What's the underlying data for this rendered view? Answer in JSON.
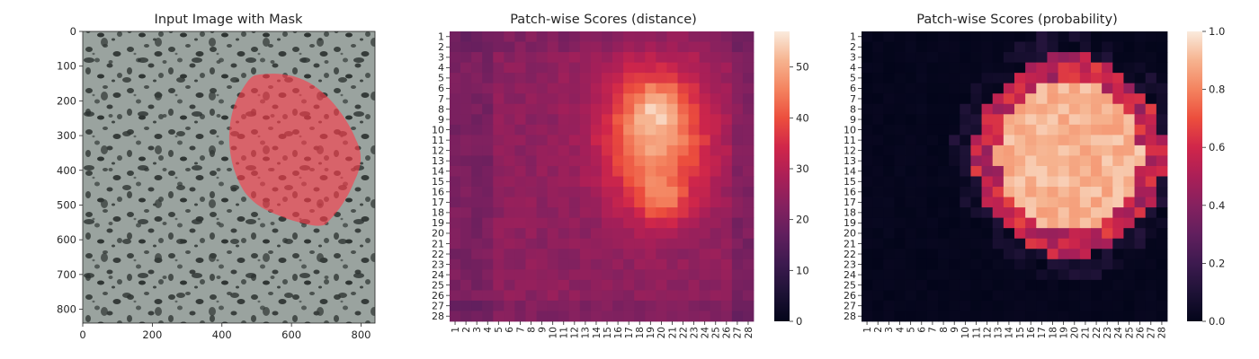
{
  "chart_data": [
    {
      "type": "image",
      "title": "Input Image with Mask",
      "xlim": [
        0,
        840
      ],
      "ylim": [
        840,
        0
      ],
      "x_ticks": [
        0,
        200,
        400,
        600,
        800
      ],
      "y_ticks": [
        0,
        100,
        200,
        300,
        400,
        500,
        600,
        700,
        800
      ],
      "mask_region": {
        "color": "#ff3b4a",
        "center_x": 608,
        "center_y": 340,
        "width": 390,
        "height": 420
      }
    },
    {
      "type": "heatmap",
      "title": "Patch-wise Scores (distance)",
      "rows": 28,
      "cols": 28,
      "row_labels": [
        "1",
        "2",
        "3",
        "4",
        "5",
        "6",
        "7",
        "8",
        "9",
        "10",
        "11",
        "12",
        "13",
        "14",
        "15",
        "16",
        "17",
        "18",
        "19",
        "20",
        "21",
        "22",
        "23",
        "24",
        "25",
        "26",
        "27",
        "28"
      ],
      "col_labels": [
        "1",
        "2",
        "3",
        "4",
        "5",
        "6",
        "7",
        "8",
        "9",
        "10",
        "11",
        "12",
        "13",
        "14",
        "15",
        "16",
        "17",
        "18",
        "19",
        "20",
        "21",
        "22",
        "23",
        "24",
        "25",
        "26",
        "27",
        "28"
      ],
      "colorbar": {
        "min": 0,
        "max": 57,
        "ticks": [
          0,
          10,
          20,
          30,
          40,
          50
        ]
      },
      "colormap": "rocket",
      "field": {
        "base": 24,
        "blobs": [
          {
            "r": 10.5,
            "c": 19.5,
            "amp": 26,
            "sr": 6.5,
            "sc": 5
          },
          {
            "r": 7.5,
            "c": 19.5,
            "amp": 8,
            "sr": 2.2,
            "sc": 2.2
          },
          {
            "r": 17,
            "c": 20,
            "amp": 13,
            "sr": 2.2,
            "sc": 2.5
          }
        ]
      }
    },
    {
      "type": "heatmap",
      "title": "Patch-wise Scores (probability)",
      "rows": 28,
      "cols": 28,
      "row_labels": [
        "1",
        "2",
        "3",
        "4",
        "5",
        "6",
        "7",
        "8",
        "9",
        "10",
        "11",
        "12",
        "13",
        "14",
        "15",
        "16",
        "17",
        "18",
        "19",
        "20",
        "21",
        "22",
        "23",
        "24",
        "25",
        "26",
        "27",
        "28"
      ],
      "col_labels": [
        "1",
        "2",
        "3",
        "4",
        "5",
        "6",
        "7",
        "8",
        "9",
        "10",
        "11",
        "12",
        "13",
        "14",
        "15",
        "16",
        "17",
        "18",
        "19",
        "20",
        "21",
        "22",
        "23",
        "24",
        "25",
        "26",
        "27",
        "28"
      ],
      "colorbar": {
        "min": 0.0,
        "max": 1.0,
        "ticks": [
          "0.0",
          "0.2",
          "0.4",
          "0.6",
          "0.8",
          "1.0"
        ]
      },
      "colormap": "rocket",
      "field": {
        "center_row": 12.5,
        "center_col": 19.5,
        "radius_rows": 9.2,
        "radius_cols": 8.2,
        "core_value": 0.9
      }
    }
  ]
}
